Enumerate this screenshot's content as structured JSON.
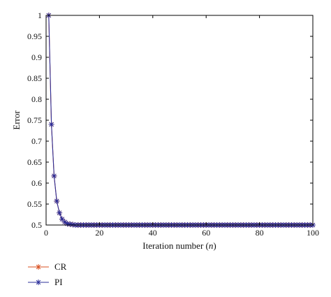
{
  "chart_data": {
    "type": "line",
    "xlabel": "Iteration number (n)",
    "ylabel": "Error",
    "xlim": [
      0,
      100
    ],
    "ylim": [
      0.5,
      1
    ],
    "xticks": [
      "0",
      "20",
      "40",
      "60",
      "80",
      "100"
    ],
    "yticks": [
      "0.5",
      "0.55",
      "0.6",
      "0.65",
      "0.7",
      "0.75",
      "0.8",
      "0.85",
      "0.9",
      "0.95",
      "1"
    ],
    "grid": false,
    "legend_position": "bottom-left",
    "series": [
      {
        "name": "CR",
        "color": "#d94f1f",
        "marker": "asterisk",
        "x": [
          1,
          2,
          3,
          4,
          5,
          6,
          7,
          8,
          9,
          10,
          11,
          12,
          13,
          14,
          15,
          16,
          17,
          18,
          19,
          20,
          21,
          22,
          23,
          24,
          25,
          26,
          27,
          28,
          29,
          30,
          31,
          32,
          33,
          34,
          35,
          36,
          37,
          38,
          39,
          40,
          41,
          42,
          43,
          44,
          45,
          46,
          47,
          48,
          49,
          50,
          51,
          52,
          53,
          54,
          55,
          56,
          57,
          58,
          59,
          60,
          61,
          62,
          63,
          64,
          65,
          66,
          67,
          68,
          69,
          70,
          71,
          72,
          73,
          74,
          75,
          76,
          77,
          78,
          79,
          80,
          81,
          82,
          83,
          84,
          85,
          86,
          87,
          88,
          89,
          90,
          91,
          92,
          93,
          94,
          95,
          96,
          97,
          98,
          99,
          100
        ],
        "y": [
          1,
          0.74,
          0.617,
          0.557,
          0.529,
          0.514,
          0.507,
          0.503,
          0.502,
          0.501,
          0.5,
          0.5,
          0.5,
          0.5,
          0.5,
          0.5,
          0.5,
          0.5,
          0.5,
          0.5,
          0.5,
          0.5,
          0.5,
          0.5,
          0.5,
          0.5,
          0.5,
          0.5,
          0.5,
          0.5,
          0.5,
          0.5,
          0.5,
          0.5,
          0.5,
          0.5,
          0.5,
          0.5,
          0.5,
          0.5,
          0.5,
          0.5,
          0.5,
          0.5,
          0.5,
          0.5,
          0.5,
          0.5,
          0.5,
          0.5,
          0.5,
          0.5,
          0.5,
          0.5,
          0.5,
          0.5,
          0.5,
          0.5,
          0.5,
          0.5,
          0.5,
          0.5,
          0.5,
          0.5,
          0.5,
          0.5,
          0.5,
          0.5,
          0.5,
          0.5,
          0.5,
          0.5,
          0.5,
          0.5,
          0.5,
          0.5,
          0.5,
          0.5,
          0.5,
          0.5,
          0.5,
          0.5,
          0.5,
          0.5,
          0.5,
          0.5,
          0.5,
          0.5,
          0.5,
          0.5,
          0.5,
          0.5,
          0.5,
          0.5,
          0.5,
          0.5,
          0.5,
          0.5,
          0.5,
          0.5
        ]
      },
      {
        "name": "PI",
        "color": "#2b2f9a",
        "marker": "asterisk",
        "x": [
          1,
          2,
          3,
          4,
          5,
          6,
          7,
          8,
          9,
          10,
          11,
          12,
          13,
          14,
          15,
          16,
          17,
          18,
          19,
          20,
          21,
          22,
          23,
          24,
          25,
          26,
          27,
          28,
          29,
          30,
          31,
          32,
          33,
          34,
          35,
          36,
          37,
          38,
          39,
          40,
          41,
          42,
          43,
          44,
          45,
          46,
          47,
          48,
          49,
          50,
          51,
          52,
          53,
          54,
          55,
          56,
          57,
          58,
          59,
          60,
          61,
          62,
          63,
          64,
          65,
          66,
          67,
          68,
          69,
          70,
          71,
          72,
          73,
          74,
          75,
          76,
          77,
          78,
          79,
          80,
          81,
          82,
          83,
          84,
          85,
          86,
          87,
          88,
          89,
          90,
          91,
          92,
          93,
          94,
          95,
          96,
          97,
          98,
          99,
          100
        ],
        "y": [
          1,
          0.74,
          0.617,
          0.557,
          0.529,
          0.514,
          0.507,
          0.503,
          0.502,
          0.501,
          0.5,
          0.5,
          0.5,
          0.5,
          0.5,
          0.5,
          0.5,
          0.5,
          0.5,
          0.5,
          0.5,
          0.5,
          0.5,
          0.5,
          0.5,
          0.5,
          0.5,
          0.5,
          0.5,
          0.5,
          0.5,
          0.5,
          0.5,
          0.5,
          0.5,
          0.5,
          0.5,
          0.5,
          0.5,
          0.5,
          0.5,
          0.5,
          0.5,
          0.5,
          0.5,
          0.5,
          0.5,
          0.5,
          0.5,
          0.5,
          0.5,
          0.5,
          0.5,
          0.5,
          0.5,
          0.5,
          0.5,
          0.5,
          0.5,
          0.5,
          0.5,
          0.5,
          0.5,
          0.5,
          0.5,
          0.5,
          0.5,
          0.5,
          0.5,
          0.5,
          0.5,
          0.5,
          0.5,
          0.5,
          0.5,
          0.5,
          0.5,
          0.5,
          0.5,
          0.5,
          0.5,
          0.5,
          0.5,
          0.5,
          0.5,
          0.5,
          0.5,
          0.5,
          0.5,
          0.5,
          0.5,
          0.5,
          0.5,
          0.5,
          0.5,
          0.5,
          0.5,
          0.5,
          0.5,
          0.5
        ]
      }
    ]
  }
}
